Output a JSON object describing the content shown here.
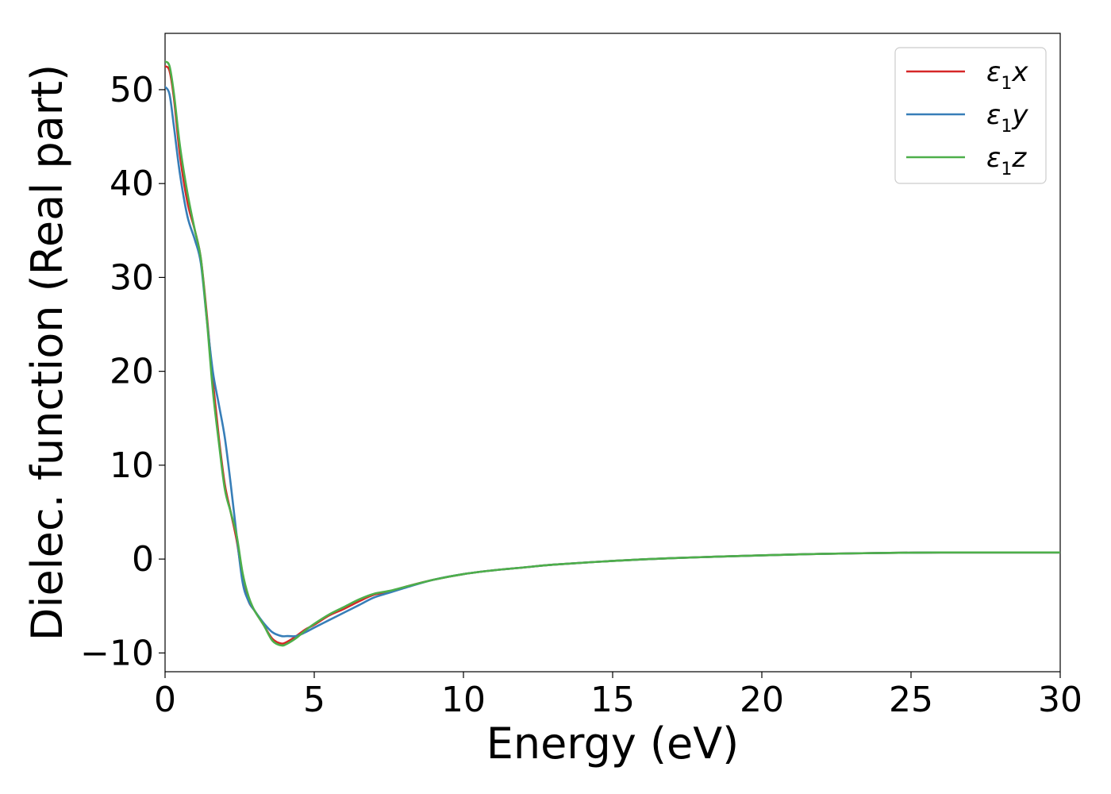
{
  "chart_data": {
    "type": "line",
    "xlabel": "Energy (eV)",
    "ylabel": "Dielec. function (Real part)",
    "xlim": [
      0,
      30
    ],
    "ylim": [
      -12,
      56
    ],
    "xticks": [
      0,
      5,
      10,
      15,
      20,
      25,
      30
    ],
    "xtick_labels": [
      "0",
      "5",
      "10",
      "15",
      "20",
      "25",
      "30"
    ],
    "yticks": [
      -10,
      0,
      10,
      20,
      30,
      40,
      50
    ],
    "ytick_labels": [
      "−10",
      "0",
      "10",
      "20",
      "30",
      "40",
      "50"
    ],
    "grid": false,
    "legend_position": "top-right",
    "series": [
      {
        "name": "ε1x",
        "legend": {
          "base": "ε",
          "sub": "1",
          "suffix": "x"
        },
        "color": "#d62728",
        "x": [
          0,
          0.15,
          0.3,
          0.5,
          0.75,
          1.0,
          1.2,
          1.4,
          1.6,
          1.8,
          2.0,
          2.2,
          2.4,
          2.6,
          2.8,
          3.0,
          3.3,
          3.6,
          3.9,
          4.1,
          4.4,
          4.7,
          5.0,
          5.5,
          6.0,
          6.5,
          7.0,
          7.5,
          8.0,
          9.0,
          10.0,
          11.0,
          12.0,
          13.0,
          15.0,
          17.0,
          20.0,
          22.0,
          24.0,
          26.0,
          28.0,
          30.0
        ],
        "y": [
          52.5,
          52.0,
          49.0,
          43.0,
          38.0,
          35.0,
          32.0,
          26.0,
          19.0,
          13.0,
          8.0,
          5.0,
          2.0,
          -2.0,
          -4.5,
          -5.5,
          -7.0,
          -8.5,
          -9.0,
          -8.8,
          -8.2,
          -7.5,
          -7.0,
          -6.0,
          -5.3,
          -4.5,
          -3.8,
          -3.5,
          -3.0,
          -2.2,
          -1.6,
          -1.2,
          -0.9,
          -0.6,
          -0.2,
          0.1,
          0.4,
          0.55,
          0.65,
          0.7,
          0.7,
          0.7
        ]
      },
      {
        "name": "ε1y",
        "legend": {
          "base": "ε",
          "sub": "1",
          "suffix": "y"
        },
        "color": "#377eb8",
        "x": [
          0,
          0.15,
          0.3,
          0.5,
          0.75,
          1.0,
          1.2,
          1.4,
          1.6,
          1.8,
          2.0,
          2.2,
          2.4,
          2.6,
          2.8,
          3.0,
          3.3,
          3.6,
          3.9,
          4.1,
          4.4,
          4.7,
          5.0,
          5.5,
          6.0,
          6.5,
          7.0,
          7.5,
          8.0,
          9.0,
          10.0,
          11.0,
          12.0,
          13.0,
          15.0,
          17.0,
          20.0,
          22.0,
          24.0,
          26.0,
          28.0,
          30.0
        ],
        "y": [
          50.3,
          49.5,
          46.0,
          41.0,
          36.5,
          34.0,
          31.5,
          25.5,
          20.0,
          16.5,
          13.0,
          8.0,
          2.5,
          -2.5,
          -4.5,
          -5.5,
          -6.8,
          -7.8,
          -8.2,
          -8.2,
          -8.2,
          -7.8,
          -7.3,
          -6.5,
          -5.7,
          -4.9,
          -4.1,
          -3.6,
          -3.1,
          -2.2,
          -1.6,
          -1.2,
          -0.9,
          -0.6,
          -0.2,
          0.1,
          0.4,
          0.55,
          0.65,
          0.7,
          0.7,
          0.7
        ]
      },
      {
        "name": "ε1z",
        "legend": {
          "base": "ε",
          "sub": "1",
          "suffix": "z"
        },
        "color": "#4daf4a",
        "x": [
          0,
          0.15,
          0.3,
          0.5,
          0.75,
          1.0,
          1.2,
          1.4,
          1.6,
          1.8,
          2.0,
          2.2,
          2.4,
          2.6,
          2.8,
          3.0,
          3.3,
          3.6,
          3.9,
          4.1,
          4.4,
          4.7,
          5.0,
          5.5,
          6.0,
          6.5,
          7.0,
          7.5,
          8.0,
          9.0,
          10.0,
          11.0,
          12.0,
          13.0,
          15.0,
          17.0,
          20.0,
          22.0,
          24.0,
          26.0,
          28.0,
          30.0
        ],
        "y": [
          53.0,
          52.5,
          49.5,
          44.0,
          39.0,
          35.0,
          32.0,
          25.5,
          18.0,
          12.5,
          7.5,
          5.0,
          2.5,
          -1.5,
          -4.0,
          -5.5,
          -7.0,
          -8.7,
          -9.2,
          -9.0,
          -8.4,
          -7.6,
          -6.9,
          -5.9,
          -5.1,
          -4.3,
          -3.7,
          -3.4,
          -3.0,
          -2.2,
          -1.6,
          -1.2,
          -0.9,
          -0.6,
          -0.2,
          0.1,
          0.4,
          0.55,
          0.65,
          0.7,
          0.7,
          0.7
        ]
      }
    ]
  }
}
